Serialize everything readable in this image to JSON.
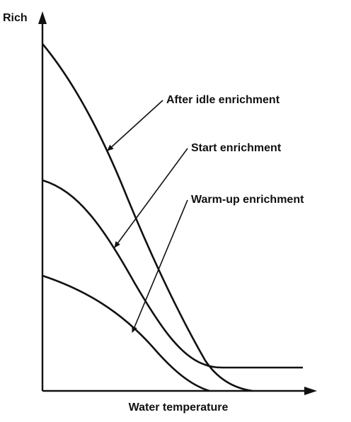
{
  "diagram": {
    "y_axis_label": "Rich",
    "x_axis_label": "Water temperature",
    "curves": [
      {
        "label": "After idle enrichment"
      },
      {
        "label": "Start enrichment"
      },
      {
        "label": "Warm-up enrichment"
      }
    ]
  }
}
